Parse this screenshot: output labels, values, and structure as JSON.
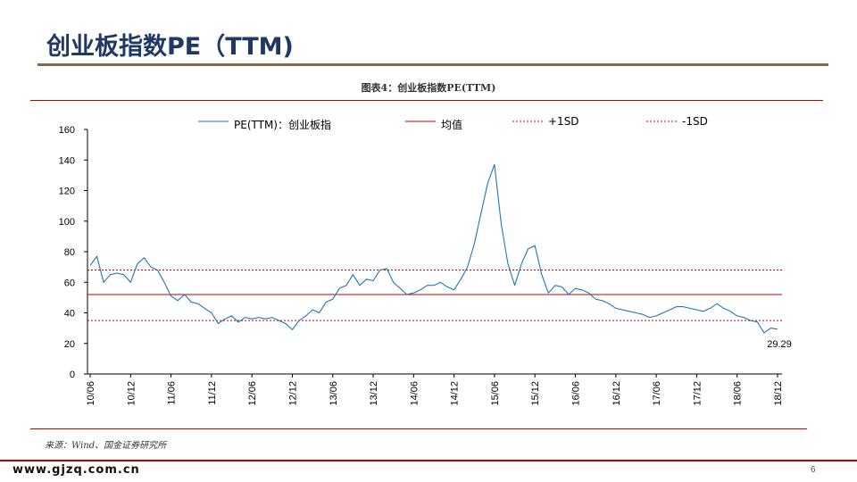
{
  "slide": {
    "title": "创业板指数PE（TTM)",
    "figure_caption": "图表4：创业板指数PE(TTM)",
    "source": "来源：Wind、国金证券研究所",
    "footer_url": "www.gjzq.com.cn",
    "page_number": "6"
  },
  "colors": {
    "title": "#1f3864",
    "pe_line": "#1f77b4",
    "mean_line": "#c00000",
    "sd_lines": "#c00000",
    "rule": "#c00000"
  },
  "chart_data": {
    "type": "line",
    "title": "",
    "xlabel": "",
    "ylabel": "",
    "ylim": [
      0,
      160
    ],
    "yticks": [
      0,
      20,
      40,
      60,
      80,
      100,
      120,
      140,
      160
    ],
    "x_tick_labels": [
      "10/06",
      "10/12",
      "11/06",
      "11/12",
      "12/06",
      "12/12",
      "13/06",
      "13/12",
      "14/06",
      "14/12",
      "15/06",
      "15/12",
      "16/06",
      "16/12",
      "17/06",
      "17/12",
      "18/06",
      "18/12"
    ],
    "grid": false,
    "legend_position": "top",
    "legend": [
      {
        "key": "pe",
        "label": "PE(TTM)：创业板指",
        "style": "solid",
        "color": "#1f77b4"
      },
      {
        "key": "mean",
        "label": "均值",
        "style": "solid",
        "color": "#c00000"
      },
      {
        "key": "plus_sd",
        "label": "+1SD",
        "style": "dashed",
        "color": "#c00000"
      },
      {
        "key": "minus_sd",
        "label": "-1SD",
        "style": "dashed",
        "color": "#c00000"
      }
    ],
    "reference_lines": {
      "mean": 52,
      "plus_sd": 68,
      "minus_sd": 35
    },
    "series": [
      {
        "name": "PE(TTM)：创业板指",
        "points": [
          [
            "10/06",
            71
          ],
          [
            "10/07",
            77
          ],
          [
            "10/08",
            60
          ],
          [
            "10/09",
            65
          ],
          [
            "10/10",
            66
          ],
          [
            "10/11",
            65
          ],
          [
            "10/12",
            60
          ],
          [
            "11/01",
            72
          ],
          [
            "11/02",
            76
          ],
          [
            "11/03",
            70
          ],
          [
            "11/04",
            68
          ],
          [
            "11/05",
            60
          ],
          [
            "11/06",
            51
          ],
          [
            "11/07",
            48
          ],
          [
            "11/08",
            52
          ],
          [
            "11/09",
            47
          ],
          [
            "11/10",
            46
          ],
          [
            "11/11",
            43
          ],
          [
            "11/12",
            40
          ],
          [
            "12/01",
            33
          ],
          [
            "12/02",
            36
          ],
          [
            "12/03",
            38
          ],
          [
            "12/04",
            34
          ],
          [
            "12/05",
            37
          ],
          [
            "12/06",
            36
          ],
          [
            "12/07",
            37
          ],
          [
            "12/08",
            36
          ],
          [
            "12/09",
            37
          ],
          [
            "12/10",
            35
          ],
          [
            "12/11",
            33
          ],
          [
            "12/12",
            29
          ],
          [
            "13/01",
            35
          ],
          [
            "13/02",
            38
          ],
          [
            "13/03",
            42
          ],
          [
            "13/04",
            40
          ],
          [
            "13/05",
            47
          ],
          [
            "13/06",
            49
          ],
          [
            "13/07",
            56
          ],
          [
            "13/08",
            58
          ],
          [
            "13/09",
            65
          ],
          [
            "13/10",
            58
          ],
          [
            "13/11",
            62
          ],
          [
            "13/12",
            61
          ],
          [
            "14/01",
            68
          ],
          [
            "14/02",
            69
          ],
          [
            "14/03",
            60
          ],
          [
            "14/04",
            56
          ],
          [
            "14/05",
            52
          ],
          [
            "14/06",
            53
          ],
          [
            "14/07",
            55
          ],
          [
            "14/08",
            58
          ],
          [
            "14/09",
            58
          ],
          [
            "14/10",
            60
          ],
          [
            "14/11",
            57
          ],
          [
            "14/12",
            55
          ],
          [
            "15/01",
            62
          ],
          [
            "15/02",
            70
          ],
          [
            "15/03",
            85
          ],
          [
            "15/04",
            105
          ],
          [
            "15/05",
            125
          ],
          [
            "15/06",
            137
          ],
          [
            "15/07",
            98
          ],
          [
            "15/08",
            72
          ],
          [
            "15/09",
            58
          ],
          [
            "15/10",
            72
          ],
          [
            "15/11",
            82
          ],
          [
            "15/12",
            84
          ],
          [
            "16/01",
            65
          ],
          [
            "16/02",
            53
          ],
          [
            "16/03",
            58
          ],
          [
            "16/04",
            57
          ],
          [
            "16/05",
            52
          ],
          [
            "16/06",
            56
          ],
          [
            "16/07",
            55
          ],
          [
            "16/08",
            53
          ],
          [
            "16/09",
            49
          ],
          [
            "16/10",
            48
          ],
          [
            "16/11",
            46
          ],
          [
            "16/12",
            43
          ],
          [
            "17/01",
            42
          ],
          [
            "17/02",
            41
          ],
          [
            "17/03",
            40
          ],
          [
            "17/04",
            39
          ],
          [
            "17/05",
            37
          ],
          [
            "17/06",
            38
          ],
          [
            "17/07",
            40
          ],
          [
            "17/08",
            42
          ],
          [
            "17/09",
            44
          ],
          [
            "17/10",
            44
          ],
          [
            "17/11",
            43
          ],
          [
            "17/12",
            42
          ],
          [
            "18/01",
            41
          ],
          [
            "18/02",
            43
          ],
          [
            "18/03",
            46
          ],
          [
            "18/04",
            43
          ],
          [
            "18/05",
            41
          ],
          [
            "18/06",
            38
          ],
          [
            "18/07",
            37
          ],
          [
            "18/08",
            35
          ],
          [
            "18/09",
            34
          ],
          [
            "18/10",
            27
          ],
          [
            "18/11",
            30
          ],
          [
            "18/12",
            29.29
          ]
        ]
      }
    ],
    "annotations": [
      {
        "label": "29.29",
        "x": "18/12",
        "y": 29.29
      }
    ]
  }
}
